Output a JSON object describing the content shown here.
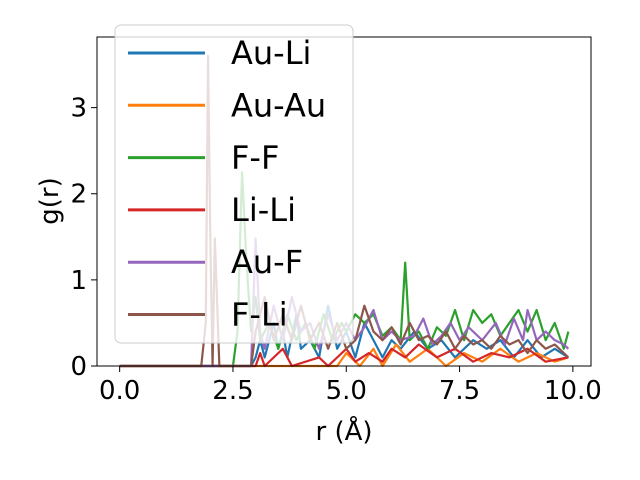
{
  "chart_data": {
    "type": "line",
    "title": "",
    "xlabel": "r (Å)",
    "ylabel": "g(r)",
    "xlim": [
      -0.5,
      10.4
    ],
    "ylim": [
      0,
      3.82
    ],
    "xticks": [
      0.0,
      2.5,
      5.0,
      7.5,
      10.0
    ],
    "xtick_labels": [
      "0.0",
      "2.5",
      "5.0",
      "7.5",
      "10.0"
    ],
    "yticks": [
      0,
      1,
      2,
      3
    ],
    "ytick_labels": [
      "0",
      "1",
      "2",
      "3"
    ],
    "grid": false,
    "legend_position": "top-left",
    "series": [
      {
        "name": "Au-Li",
        "color": "#1f77b4",
        "points": [
          [
            0,
            0
          ],
          [
            2.9,
            0
          ],
          [
            3.0,
            0.1
          ],
          [
            3.1,
            0.3
          ],
          [
            3.2,
            0.1
          ],
          [
            3.4,
            0.5
          ],
          [
            3.5,
            0.2
          ],
          [
            3.6,
            0.4
          ],
          [
            3.7,
            0.1
          ],
          [
            3.9,
            0.6
          ],
          [
            4.0,
            0.2
          ],
          [
            4.2,
            0.3
          ],
          [
            4.4,
            0.1
          ],
          [
            4.6,
            0.7
          ],
          [
            4.8,
            0.2
          ],
          [
            5.0,
            0.4
          ],
          [
            5.2,
            0.1
          ],
          [
            5.4,
            0.5
          ],
          [
            5.6,
            0.3
          ],
          [
            5.8,
            0.1
          ],
          [
            6.0,
            0.3
          ],
          [
            6.2,
            0.2
          ],
          [
            6.5,
            0.4
          ],
          [
            6.8,
            0.2
          ],
          [
            7.1,
            0.3
          ],
          [
            7.4,
            0.1
          ],
          [
            7.8,
            0.3
          ],
          [
            8.1,
            0.2
          ],
          [
            8.4,
            0.3
          ],
          [
            8.7,
            0.1
          ],
          [
            9.0,
            0.3
          ],
          [
            9.3,
            0.1
          ],
          [
            9.6,
            0.2
          ],
          [
            9.9,
            0.1
          ]
        ]
      },
      {
        "name": "Au-Au",
        "color": "#ff7f0e",
        "points": [
          [
            0,
            0
          ],
          [
            4.8,
            0
          ],
          [
            5.0,
            0.15
          ],
          [
            5.3,
            0
          ],
          [
            5.6,
            0.2
          ],
          [
            5.8,
            0
          ],
          [
            6.1,
            0.25
          ],
          [
            6.4,
            0.05
          ],
          [
            6.8,
            0.2
          ],
          [
            7.2,
            0
          ],
          [
            7.6,
            0.15
          ],
          [
            8.0,
            0.05
          ],
          [
            8.4,
            0.2
          ],
          [
            8.8,
            0.05
          ],
          [
            9.2,
            0.15
          ],
          [
            9.6,
            0.05
          ],
          [
            9.9,
            0.1
          ]
        ]
      },
      {
        "name": "F-F",
        "color": "#2ca02c",
        "points": [
          [
            0,
            0
          ],
          [
            2.5,
            0
          ],
          [
            2.6,
            0.4
          ],
          [
            2.7,
            2.25
          ],
          [
            2.8,
            1.2
          ],
          [
            2.9,
            0.4
          ],
          [
            3.0,
            0.8
          ],
          [
            3.1,
            0.3
          ],
          [
            3.3,
            0.5
          ],
          [
            3.5,
            0.2
          ],
          [
            3.7,
            0.6
          ],
          [
            3.9,
            0.3
          ],
          [
            4.1,
            0.5
          ],
          [
            4.3,
            0.2
          ],
          [
            4.5,
            0.6
          ],
          [
            4.7,
            0.3
          ],
          [
            4.9,
            0.5
          ],
          [
            5.0,
            0.4
          ],
          [
            5.2,
            0.6
          ],
          [
            5.4,
            0.5
          ],
          [
            5.6,
            0.6
          ],
          [
            5.8,
            0.35
          ],
          [
            6.0,
            0.45
          ],
          [
            6.2,
            0.3
          ],
          [
            6.3,
            1.2
          ],
          [
            6.4,
            0.3
          ],
          [
            6.6,
            0.4
          ],
          [
            6.8,
            0.2
          ],
          [
            7.0,
            0.45
          ],
          [
            7.2,
            0.35
          ],
          [
            7.4,
            0.65
          ],
          [
            7.6,
            0.3
          ],
          [
            7.8,
            0.65
          ],
          [
            8.0,
            0.5
          ],
          [
            8.2,
            0.6
          ],
          [
            8.4,
            0.35
          ],
          [
            8.6,
            0.5
          ],
          [
            8.8,
            0.65
          ],
          [
            9.0,
            0.4
          ],
          [
            9.2,
            0.65
          ],
          [
            9.4,
            0.3
          ],
          [
            9.6,
            0.5
          ],
          [
            9.8,
            0.2
          ],
          [
            9.9,
            0.4
          ]
        ]
      },
      {
        "name": "Li-Li",
        "color": "#d62728",
        "points": [
          [
            0,
            0
          ],
          [
            3.0,
            0
          ],
          [
            3.1,
            0.15
          ],
          [
            3.2,
            0
          ],
          [
            3.6,
            0.2
          ],
          [
            3.8,
            0
          ],
          [
            4.4,
            0.1
          ],
          [
            4.6,
            0
          ],
          [
            5.0,
            0.2
          ],
          [
            5.2,
            0.05
          ],
          [
            5.5,
            0.15
          ],
          [
            5.8,
            0.05
          ],
          [
            6.0,
            0.2
          ],
          [
            6.3,
            0.1
          ],
          [
            6.6,
            0.25
          ],
          [
            7.0,
            0.1
          ],
          [
            7.4,
            0.2
          ],
          [
            7.8,
            0.05
          ],
          [
            8.2,
            0.15
          ],
          [
            8.6,
            0.1
          ],
          [
            9.0,
            0.2
          ],
          [
            9.4,
            0.05
          ],
          [
            9.9,
            0.1
          ]
        ]
      },
      {
        "name": "Au-F",
        "color": "#9467bd",
        "points": [
          [
            0,
            0
          ],
          [
            2.9,
            0
          ],
          [
            3.0,
            1.48
          ],
          [
            3.1,
            0.4
          ],
          [
            3.2,
            0.2
          ],
          [
            3.4,
            0.7
          ],
          [
            3.6,
            0.3
          ],
          [
            3.8,
            0.8
          ],
          [
            4.0,
            0.4
          ],
          [
            4.2,
            0.5
          ],
          [
            4.4,
            0.2
          ],
          [
            4.6,
            0.6
          ],
          [
            4.8,
            0.3
          ],
          [
            5.0,
            0.5
          ],
          [
            5.2,
            0.3
          ],
          [
            5.4,
            0.45
          ],
          [
            5.6,
            0.65
          ],
          [
            5.8,
            0.3
          ],
          [
            6.0,
            0.4
          ],
          [
            6.2,
            0.3
          ],
          [
            6.5,
            0.35
          ],
          [
            6.7,
            0.55
          ],
          [
            6.9,
            0.25
          ],
          [
            7.1,
            0.35
          ],
          [
            7.3,
            0.5
          ],
          [
            7.5,
            0.3
          ],
          [
            7.7,
            0.45
          ],
          [
            8.0,
            0.3
          ],
          [
            8.3,
            0.5
          ],
          [
            8.5,
            0.25
          ],
          [
            8.7,
            0.55
          ],
          [
            8.9,
            0.3
          ],
          [
            9.0,
            0.65
          ],
          [
            9.2,
            0.3
          ],
          [
            9.4,
            0.4
          ],
          [
            9.6,
            0.3
          ],
          [
            9.8,
            0.25
          ],
          [
            9.9,
            0.2
          ]
        ]
      },
      {
        "name": "F-Li",
        "color": "#8c564b",
        "points": [
          [
            0,
            0
          ],
          [
            1.8,
            0
          ],
          [
            1.9,
            0.5
          ],
          [
            1.95,
            3.6
          ],
          [
            2.0,
            1.5
          ],
          [
            2.05,
            0
          ],
          [
            2.1,
            1.48
          ],
          [
            2.2,
            0
          ],
          [
            2.9,
            0
          ],
          [
            3.0,
            0.4
          ],
          [
            3.2,
            0.8
          ],
          [
            3.4,
            0.3
          ],
          [
            3.6,
            0.6
          ],
          [
            3.8,
            0.3
          ],
          [
            4.0,
            0.7
          ],
          [
            4.2,
            0.3
          ],
          [
            4.4,
            0.5
          ],
          [
            4.6,
            0.2
          ],
          [
            4.8,
            0.5
          ],
          [
            5.0,
            0.2
          ],
          [
            5.2,
            0.3
          ],
          [
            5.4,
            0.7
          ],
          [
            5.6,
            0.4
          ],
          [
            5.8,
            0.3
          ],
          [
            6.0,
            0.45
          ],
          [
            6.2,
            0.25
          ],
          [
            6.4,
            0.5
          ],
          [
            6.6,
            0.3
          ],
          [
            6.8,
            0.35
          ],
          [
            7.0,
            0.25
          ],
          [
            7.2,
            0.4
          ],
          [
            7.4,
            0.2
          ],
          [
            7.6,
            0.35
          ],
          [
            7.8,
            0.25
          ],
          [
            8.0,
            0.3
          ],
          [
            8.2,
            0.2
          ],
          [
            8.4,
            0.35
          ],
          [
            8.6,
            0.25
          ],
          [
            8.8,
            0.3
          ],
          [
            9.0,
            0.15
          ],
          [
            9.2,
            0.3
          ],
          [
            9.4,
            0.2
          ],
          [
            9.6,
            0.25
          ],
          [
            9.8,
            0.15
          ],
          [
            9.9,
            0.1
          ]
        ]
      }
    ]
  }
}
